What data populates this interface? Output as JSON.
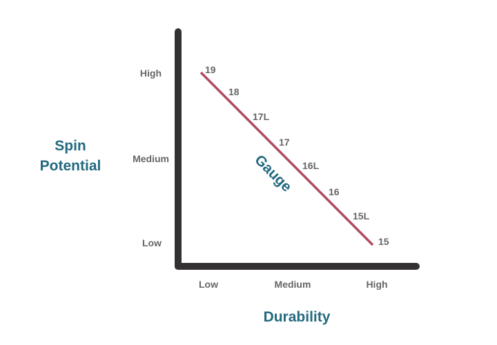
{
  "colors": {
    "axis": "#333132",
    "line": "#b04a5f",
    "title": "#23697f",
    "tick": "#666666"
  },
  "y_axis": {
    "title_line1": "Spin",
    "title_line2": "Potential",
    "ticks": [
      "High",
      "Medium",
      "Low"
    ]
  },
  "x_axis": {
    "title": "Durability",
    "ticks": [
      "Low",
      "Medium",
      "High"
    ]
  },
  "line_label": "Gauge",
  "gauges": [
    "19",
    "18",
    "17L",
    "17",
    "16L",
    "16",
    "15L",
    "15"
  ]
}
